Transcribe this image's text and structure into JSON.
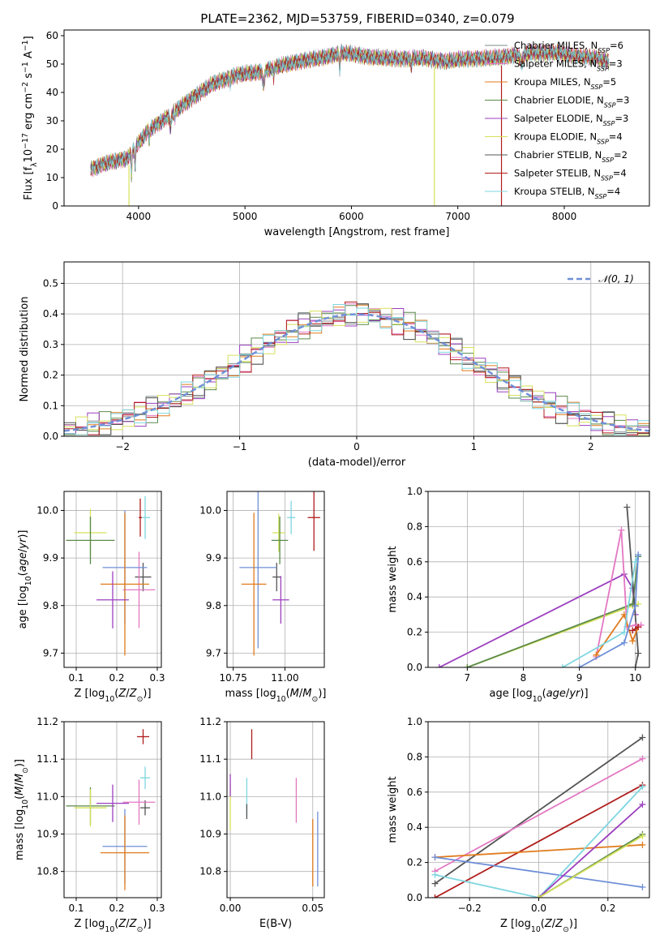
{
  "figure": {
    "title": "PLATE=2362, MJD=53759, FIBERID=0340, z=0.079",
    "colors": {
      "c0": "#7f8c8d",
      "c1": "#e377c2",
      "c2": "#e07b1c",
      "c3": "#5a8a4a",
      "c4": "#9b3fbf",
      "c5": "#d6e05a",
      "c6": "#555555",
      "c7": "#b01c1c",
      "c8": "#7fd6e0",
      "c9": "#6f8fd8"
    }
  },
  "chart_data": [
    {
      "id": "spectrum",
      "type": "line",
      "xlabel": "wavelength [Angstrom, rest frame]",
      "ylabel": "Flux [f",
      "ylabel_parts": [
        "Flux [f",
        "λ",
        "10",
        "−17",
        " erg cm",
        "−2",
        " s",
        "−1",
        " A",
        "−1",
        "]"
      ],
      "xlim": [
        3300,
        8800
      ],
      "ylim": [
        0,
        62
      ],
      "xticks": [
        4000,
        5000,
        6000,
        7000,
        8000
      ],
      "yticks": [
        0,
        10,
        20,
        30,
        40,
        50,
        60
      ],
      "legend_loc": "upper right",
      "series": [
        {
          "name": "Chabrier MILES, N",
          "sub": "SSP",
          "tail": "=6",
          "color": "c0"
        },
        {
          "name": "Salpeter MILES, N",
          "sub": "SSP",
          "tail": "=3",
          "color": "c1"
        },
        {
          "name": "Kroupa MILES, N",
          "sub": "SSP",
          "tail": "=5",
          "color": "c2"
        },
        {
          "name": "Chabrier ELODIE, N",
          "sub": "SSP",
          "tail": "=3",
          "color": "c3"
        },
        {
          "name": "Salpeter ELODIE, N",
          "sub": "SSP",
          "tail": "=3",
          "color": "c4"
        },
        {
          "name": "Kroupa ELODIE, N",
          "sub": "SSP",
          "tail": "=4",
          "color": "c5"
        },
        {
          "name": "Chabrier STELIB, N",
          "sub": "SSP",
          "tail": "=2",
          "color": "c6"
        },
        {
          "name": "Salpeter STELIB, N",
          "sub": "SSP",
          "tail": "=4",
          "color": "c7"
        },
        {
          "name": "Kroupa STELIB, N",
          "sub": "SSP",
          "tail": "=4",
          "color": "c8"
        }
      ],
      "continuum": {
        "x": [
          3550,
          3700,
          3900,
          4000,
          4100,
          4300,
          4500,
          4700,
          4900,
          5100,
          5300,
          5500,
          5700,
          5900,
          6100,
          6300,
          6500,
          6700,
          6900,
          7100,
          7300,
          7500,
          7700,
          7900,
          8100,
          8300,
          8420
        ],
        "y": [
          13,
          15,
          17,
          22,
          27,
          32,
          38,
          43,
          46,
          47,
          49,
          51,
          52,
          54,
          53,
          52,
          52,
          52,
          51,
          52,
          52,
          53,
          54,
          54,
          53,
          52,
          51
        ]
      },
      "dips": [
        {
          "x": 3910,
          "color": "c5"
        },
        {
          "x": 6780,
          "color": "c5"
        },
        {
          "x": 7410,
          "color": "c7"
        }
      ]
    },
    {
      "id": "residuals",
      "type": "step",
      "xlabel": "(data-model)/error",
      "ylabel": "Normed distribution",
      "xlim": [
        -2.5,
        2.5
      ],
      "ylim": [
        0,
        0.57
      ],
      "xticks": [
        -2,
        -1,
        0,
        1,
        2
      ],
      "xtick_labels": [
        "−2",
        "−1",
        "0",
        "1",
        "2"
      ],
      "yticks": [
        0.0,
        0.1,
        0.2,
        0.3,
        0.4,
        0.5
      ],
      "legend": "𝒩(0, 1)",
      "legend_color": "c9",
      "bin_width": 0.1
    },
    {
      "id": "age_vs_Z",
      "type": "errorbar",
      "xlabel": "Z [log10(Z/Z⊙)]",
      "ylabel": "age  [log10(age/yr)]",
      "xlim": [
        0.07,
        0.31
      ],
      "ylim": [
        9.67,
        10.04
      ],
      "xticks": [
        0.1,
        0.2,
        0.3
      ],
      "yticks": [
        9.7,
        9.8,
        9.9,
        10.0
      ],
      "points": [
        {
          "x": 0.135,
          "y": 9.953,
          "xerr": 0.04,
          "yerr": 0.05,
          "color": "c5"
        },
        {
          "x": 0.135,
          "y": 9.937,
          "xerr": 0.06,
          "yerr": 0.05,
          "color": "c3"
        },
        {
          "x": 0.27,
          "y": 9.985,
          "xerr": 0.012,
          "yerr": 0.045,
          "color": "c8"
        },
        {
          "x": 0.265,
          "y": 9.86,
          "xerr": 0.02,
          "yerr": 0.03,
          "color": "c6"
        },
        {
          "x": 0.255,
          "y": 9.833,
          "xerr": 0.04,
          "yerr": 0.08,
          "color": "c1"
        },
        {
          "x": 0.22,
          "y": 9.88,
          "xerr": 0.055,
          "yerr": 0.12,
          "color": "c9"
        },
        {
          "x": 0.22,
          "y": 9.845,
          "xerr": 0.06,
          "yerr": 0.15,
          "color": "c2"
        },
        {
          "x": 0.19,
          "y": 9.812,
          "xerr": 0.04,
          "yerr": 0.06,
          "color": "c4"
        },
        {
          "x": 0.258,
          "y": 9.985,
          "xerr": 0.004,
          "yerr": 0.04,
          "color": "c7"
        }
      ]
    },
    {
      "id": "age_vs_mass",
      "type": "errorbar",
      "xlabel": "mass [log10(M/M⊙)]",
      "xlim": [
        10.72,
        11.19
      ],
      "ylim": [
        9.67,
        10.04
      ],
      "xticks": [
        10.75,
        11.0
      ],
      "xtick_labels": [
        "10.75",
        "11.00"
      ],
      "yticks": [
        9.7,
        9.8,
        9.9,
        10.0
      ],
      "points": [
        {
          "x": 10.97,
          "y": 9.953,
          "xerr": 0.03,
          "yerr": 0.04,
          "color": "c5"
        },
        {
          "x": 10.975,
          "y": 9.937,
          "xerr": 0.04,
          "yerr": 0.05,
          "color": "c3"
        },
        {
          "x": 11.03,
          "y": 9.985,
          "xerr": 0.02,
          "yerr": 0.035,
          "color": "c8"
        },
        {
          "x": 10.96,
          "y": 9.86,
          "xerr": 0.02,
          "yerr": 0.03,
          "color": "c6"
        },
        {
          "x": 10.87,
          "y": 9.88,
          "xerr": 0.09,
          "yerr": 0.17,
          "color": "c9"
        },
        {
          "x": 10.85,
          "y": 9.845,
          "xerr": 0.06,
          "yerr": 0.15,
          "color": "c2"
        },
        {
          "x": 10.98,
          "y": 9.812,
          "xerr": 0.04,
          "yerr": 0.05,
          "color": "c4"
        },
        {
          "x": 11.14,
          "y": 9.985,
          "xerr": 0.03,
          "yerr": 0.07,
          "color": "c7"
        }
      ]
    },
    {
      "id": "weight_vs_age",
      "type": "line",
      "xlabel": "age  [log10(age/yr)]",
      "ylabel": "mass weight",
      "xlim": [
        6.3,
        10.25
      ],
      "ylim": [
        0,
        1
      ],
      "xticks": [
        7,
        8,
        9,
        10
      ],
      "yticks": [
        0.0,
        0.2,
        0.4,
        0.6,
        0.8,
        1.0
      ],
      "series": [
        {
          "color": "c4",
          "x": [
            6.5,
            9.8,
            9.95,
            10.0
          ],
          "y": [
            0.0,
            0.53,
            0.45,
            0.3
          ]
        },
        {
          "color": "c5",
          "x": [
            7.0,
            9.95,
            10.05
          ],
          "y": [
            0.0,
            0.35,
            0.36
          ]
        },
        {
          "color": "c3",
          "x": [
            7.0,
            9.95,
            10.05
          ],
          "y": [
            0.0,
            0.36,
            0.63
          ]
        },
        {
          "color": "c6",
          "x": [
            9.85,
            10.05,
            10.0
          ],
          "y": [
            0.91,
            0.08,
            0.0
          ]
        },
        {
          "color": "c1",
          "x": [
            9.3,
            9.75,
            9.85,
            10.0,
            10.1
          ],
          "y": [
            0.06,
            0.78,
            0.23,
            0.24,
            0.24
          ]
        },
        {
          "color": "c2",
          "x": [
            9.3,
            9.8,
            9.95,
            10.05
          ],
          "y": [
            0.07,
            0.3,
            0.15,
            0.23
          ]
        },
        {
          "color": "c8",
          "x": [
            8.7,
            9.8,
            10.0,
            10.05
          ],
          "y": [
            0.0,
            0.2,
            0.6,
            0.64
          ]
        },
        {
          "color": "c9",
          "x": [
            9.0,
            9.8,
            10.0,
            10.05
          ],
          "y": [
            0.0,
            0.14,
            0.35,
            0.64
          ]
        },
        {
          "color": "c7",
          "x": [
            9.95,
            10.05
          ],
          "y": [
            0.21,
            0.23
          ]
        }
      ]
    },
    {
      "id": "mass_vs_Z",
      "type": "errorbar",
      "xlabel": "Z [log10(Z/Z⊙)]",
      "ylabel": "mass [log10(M/M⊙)]",
      "xlim": [
        0.07,
        0.31
      ],
      "ylim": [
        10.73,
        11.2
      ],
      "xticks": [
        0.1,
        0.2,
        0.3
      ],
      "yticks": [
        10.8,
        10.9,
        11.0,
        11.1,
        11.2
      ],
      "points": [
        {
          "x": 0.135,
          "y": 10.975,
          "xerr": 0.06,
          "yerr": 0.05,
          "color": "c3"
        },
        {
          "x": 0.135,
          "y": 10.97,
          "xerr": 0.04,
          "yerr": 0.05,
          "color": "c5"
        },
        {
          "x": 0.27,
          "y": 11.05,
          "xerr": 0.012,
          "yerr": 0.03,
          "color": "c8"
        },
        {
          "x": 0.265,
          "y": 11.16,
          "xerr": 0.015,
          "yerr": 0.02,
          "color": "c7"
        },
        {
          "x": 0.27,
          "y": 10.97,
          "xerr": 0.012,
          "yerr": 0.02,
          "color": "c6"
        },
        {
          "x": 0.255,
          "y": 10.985,
          "xerr": 0.04,
          "yerr": 0.06,
          "color": "c1"
        },
        {
          "x": 0.22,
          "y": 10.867,
          "xerr": 0.055,
          "yerr": 0.1,
          "color": "c9"
        },
        {
          "x": 0.22,
          "y": 10.85,
          "xerr": 0.06,
          "yerr": 0.1,
          "color": "c2"
        },
        {
          "x": 0.19,
          "y": 10.982,
          "xerr": 0.04,
          "yerr": 0.05,
          "color": "c4"
        }
      ]
    },
    {
      "id": "mass_vs_ebv",
      "type": "errorbar",
      "xlabel": "E(B-V)",
      "xlim": [
        -0.002,
        0.057
      ],
      "ylim": [
        10.73,
        11.2
      ],
      "xticks": [
        0.0,
        0.05
      ],
      "xtick_labels": [
        "0.00",
        "0.05"
      ],
      "yticks": [
        10.8,
        10.9,
        11.0,
        11.1,
        11.2
      ],
      "points": [
        {
          "x": 0.0,
          "y": 10.97,
          "xerr": 0,
          "yerr": 0.06,
          "color": "c5"
        },
        {
          "x": 0.0,
          "y": 11.03,
          "xerr": 0,
          "yerr": 0.03,
          "color": "c4"
        },
        {
          "x": 0.01,
          "y": 11.0,
          "xerr": 0,
          "yerr": 0.05,
          "color": "c8"
        },
        {
          "x": 0.01,
          "y": 10.96,
          "xerr": 0,
          "yerr": 0.02,
          "color": "c6"
        },
        {
          "x": 0.013,
          "y": 11.14,
          "xerr": 0,
          "yerr": 0.04,
          "color": "c7"
        },
        {
          "x": 0.04,
          "y": 10.99,
          "xerr": 0,
          "yerr": 0.06,
          "color": "c1"
        },
        {
          "x": 0.05,
          "y": 10.85,
          "xerr": 0,
          "yerr": 0.09,
          "color": "c2"
        },
        {
          "x": 0.053,
          "y": 10.86,
          "xerr": 0,
          "yerr": 0.1,
          "color": "c9"
        }
      ]
    },
    {
      "id": "weight_vs_Z",
      "type": "line",
      "xlabel": "Z [log10(Z/Z⊙)]",
      "ylabel": "mass weight",
      "xlim": [
        -0.32,
        0.32
      ],
      "ylim": [
        0,
        1
      ],
      "xticks": [
        -0.2,
        0.0,
        0.2
      ],
      "xtick_labels": [
        "−0.2",
        "0.0",
        "0.2"
      ],
      "yticks": [
        0.0,
        0.2,
        0.4,
        0.6,
        0.8,
        1.0
      ],
      "series": [
        {
          "color": "c6",
          "x": [
            -0.3,
            0.3
          ],
          "y": [
            0.08,
            0.91
          ]
        },
        {
          "color": "c1",
          "x": [
            -0.3,
            0.3
          ],
          "y": [
            0.15,
            0.79
          ]
        },
        {
          "color": "c7",
          "x": [
            -0.3,
            0.3
          ],
          "y": [
            0.0,
            0.64
          ]
        },
        {
          "color": "c2",
          "x": [
            -0.3,
            0.3
          ],
          "y": [
            0.23,
            0.3
          ]
        },
        {
          "color": "c9",
          "x": [
            -0.3,
            0.3
          ],
          "y": [
            0.23,
            0.06
          ]
        },
        {
          "color": "c8",
          "x": [
            -0.3,
            0.0,
            0.3
          ],
          "y": [
            0.13,
            0.0,
            0.63
          ]
        },
        {
          "color": "c4",
          "x": [
            0.0,
            0.3
          ],
          "y": [
            0.0,
            0.53
          ]
        },
        {
          "color": "c3",
          "x": [
            0.0,
            0.3
          ],
          "y": [
            0.0,
            0.36
          ]
        },
        {
          "color": "c5",
          "x": [
            0.0,
            0.3
          ],
          "y": [
            0.0,
            0.35
          ]
        }
      ]
    }
  ]
}
